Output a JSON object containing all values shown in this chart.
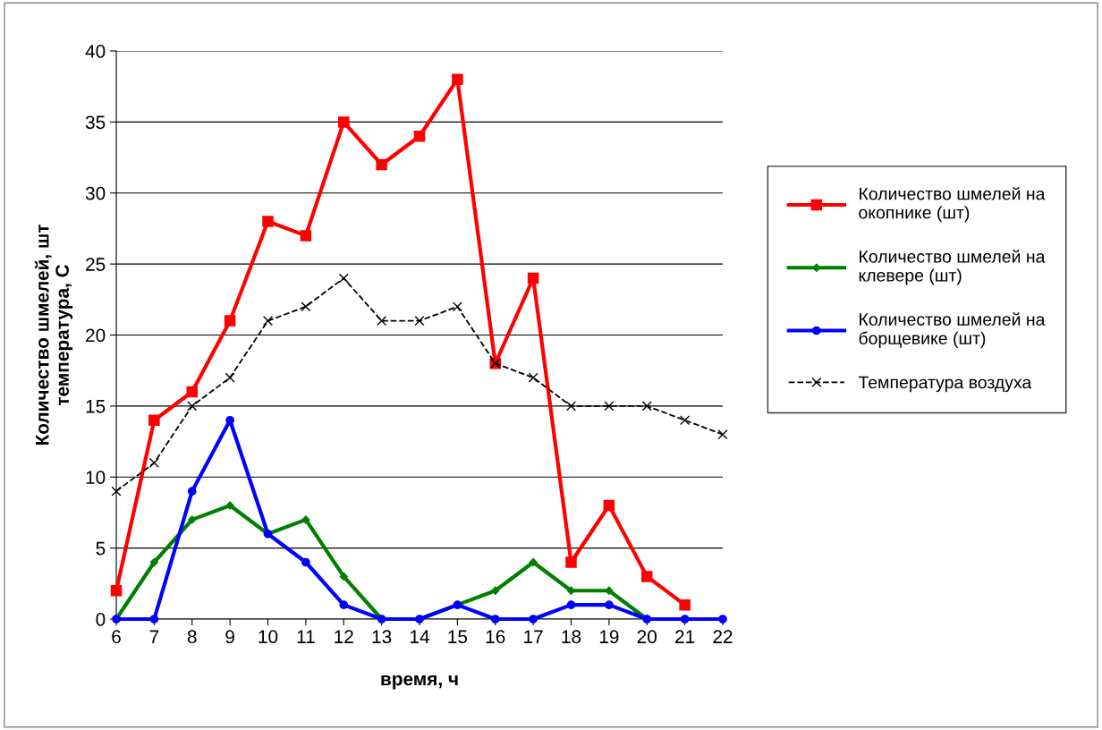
{
  "chart_data": {
    "type": "line",
    "xlabel": "время, ч",
    "ylabel": "Количество шмелей, шт\nтемпература, С",
    "categories": [
      "6",
      "7",
      "8",
      "9",
      "10",
      "11",
      "12",
      "13",
      "14",
      "15",
      "16",
      "17",
      "18",
      "19",
      "20",
      "21",
      "22"
    ],
    "series": [
      {
        "name": "Количество шмелей на\nокопнике (шт)",
        "color": "#ff0000",
        "marker": "square",
        "line_style": "solid",
        "values": [
          2,
          14,
          16,
          21,
          28,
          27,
          35,
          32,
          34,
          38,
          18,
          24,
          4,
          8,
          3,
          1,
          null
        ]
      },
      {
        "name": "Количество шмелей на\nклевере (шт)",
        "color": "#008000",
        "marker": "diamond",
        "line_style": "solid",
        "values": [
          0,
          4,
          7,
          8,
          6,
          7,
          3,
          0,
          0,
          1,
          2,
          4,
          2,
          2,
          0,
          null,
          null
        ]
      },
      {
        "name": "Количество шмелей на\nборщевике (шт)",
        "color": "#0000ff",
        "marker": "circle",
        "line_style": "solid",
        "values": [
          0,
          0,
          9,
          14,
          6,
          4,
          1,
          0,
          0,
          1,
          0,
          0,
          1,
          1,
          0,
          0,
          0
        ]
      },
      {
        "name": "Температура воздуха",
        "color": "#000000",
        "marker": "cross",
        "line_style": "dashed",
        "values": [
          9,
          11,
          15,
          17,
          21,
          22,
          24,
          21,
          21,
          22,
          18,
          17,
          15,
          15,
          15,
          14,
          13
        ]
      }
    ],
    "ylim": [
      0,
      40
    ],
    "yticks": [
      0,
      5,
      10,
      15,
      20,
      25,
      30,
      35,
      40
    ],
    "grid": "y",
    "legend": "right"
  }
}
